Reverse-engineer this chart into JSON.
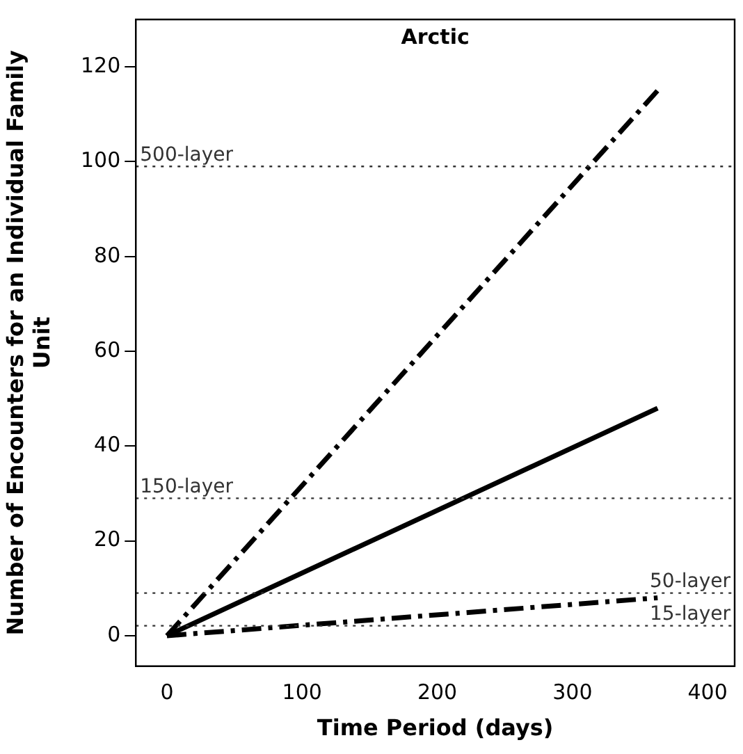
{
  "chart_data": {
    "type": "line",
    "title": "Arctic",
    "xlabel": "Time Period (days)",
    "ylabel": "Number of Encounters for an Individual Family Unit",
    "x": [
      0,
      363
    ],
    "series": [
      {
        "color": "#000000",
        "values": [
          0,
          115
        ],
        "line_style": "dashed"
      },
      {
        "color": "#000000",
        "values": [
          0,
          48
        ],
        "line_style": "solid"
      },
      {
        "color": "#000000",
        "values": [
          0,
          8
        ],
        "line_style": "dashed"
      }
    ],
    "xlim": [
      -23,
      420
    ],
    "xticks": [
      0,
      100,
      200,
      300,
      400
    ],
    "ylim": [
      -6.4,
      130
    ],
    "yticks": [
      0,
      20,
      40,
      60,
      80,
      100,
      120
    ],
    "ref_lines": [
      {
        "axis": "y",
        "value": 99,
        "label": "500-layer",
        "color": "#333333",
        "line_style": "dotted"
      },
      {
        "axis": "y",
        "value": 29,
        "label": "150-layer",
        "color": "#333333",
        "line_style": "dotted"
      },
      {
        "axis": "y",
        "value": 9,
        "label": "50-layer",
        "color": "#333333",
        "line_style": "dotted"
      },
      {
        "axis": "y",
        "value": 2.1,
        "label": "15-layer",
        "color": "#333333",
        "line_style": "dotted"
      }
    ],
    "grid": false,
    "legend": false,
    "marker": "none"
  }
}
